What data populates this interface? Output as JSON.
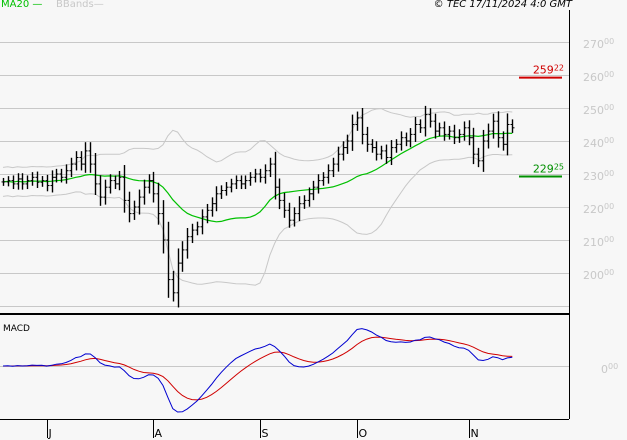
{
  "header": {
    "ma_label": "MA20",
    "bbands_label": "BBands",
    "copyright": "© TEC 17/11/2024 4:0 GMT"
  },
  "chart_data": [
    {
      "type": "ohlc",
      "title": "",
      "indicators": [
        "MA20",
        "BBands"
      ],
      "ylim": [
        188,
        276
      ],
      "yticks": [
        {
          "main": "270",
          "frac": "00",
          "value": 270
        },
        {
          "main": "260",
          "frac": "00",
          "value": 260
        },
        {
          "main": "250",
          "frac": "00",
          "value": 250
        },
        {
          "main": "240",
          "frac": "00",
          "value": 240
        },
        {
          "main": "230",
          "frac": "00",
          "value": 230
        },
        {
          "main": "220",
          "frac": "00",
          "value": 220
        },
        {
          "main": "210",
          "frac": "00",
          "value": 210
        },
        {
          "main": "200",
          "frac": "00",
          "value": 200
        }
      ],
      "grid": true,
      "xticks": [
        "J",
        "A",
        "S",
        "O",
        "N"
      ],
      "xtick_bar_index": [
        9,
        31,
        53,
        73,
        96
      ],
      "close": [
        227.6,
        228,
        227,
        228.5,
        227,
        228,
        229,
        227.5,
        228,
        226.5,
        229,
        230,
        229,
        231,
        233,
        235,
        233,
        237,
        233,
        227,
        223,
        226,
        228,
        227,
        229,
        222,
        218,
        220,
        223,
        226,
        228,
        224,
        218,
        210,
        198,
        194,
        203,
        207,
        211,
        213,
        214,
        217,
        219,
        221,
        224,
        225,
        226,
        227,
        228,
        227,
        228,
        229,
        230,
        229,
        231,
        233,
        226,
        222,
        219,
        216,
        218,
        221,
        222,
        224,
        226,
        228,
        229,
        231,
        233,
        236,
        238,
        240,
        245,
        247,
        242,
        239,
        238,
        236,
        237,
        235,
        238,
        239,
        241,
        240,
        242,
        245,
        244,
        248,
        246,
        243,
        244,
        242,
        243,
        241,
        242,
        244,
        241,
        236,
        234,
        240,
        243,
        246,
        241,
        239,
        245,
        244
      ],
      "levels": [
        {
          "main": "259",
          "frac": "22",
          "value": 259.22,
          "color": "#d00000"
        },
        {
          "main": "229",
          "frac": "25",
          "value": 229.25,
          "color": "#009000"
        }
      ],
      "colors": {
        "bars": "#000000",
        "ma20": "#00c000",
        "bbands": "#c8c8c8"
      }
    },
    {
      "type": "line",
      "title": "MACD",
      "yticks": [
        {
          "main": "0",
          "frac": "00",
          "value": 0
        }
      ],
      "series_colors": {
        "macd": "#0000d0",
        "signal": "#d00000"
      }
    }
  ]
}
